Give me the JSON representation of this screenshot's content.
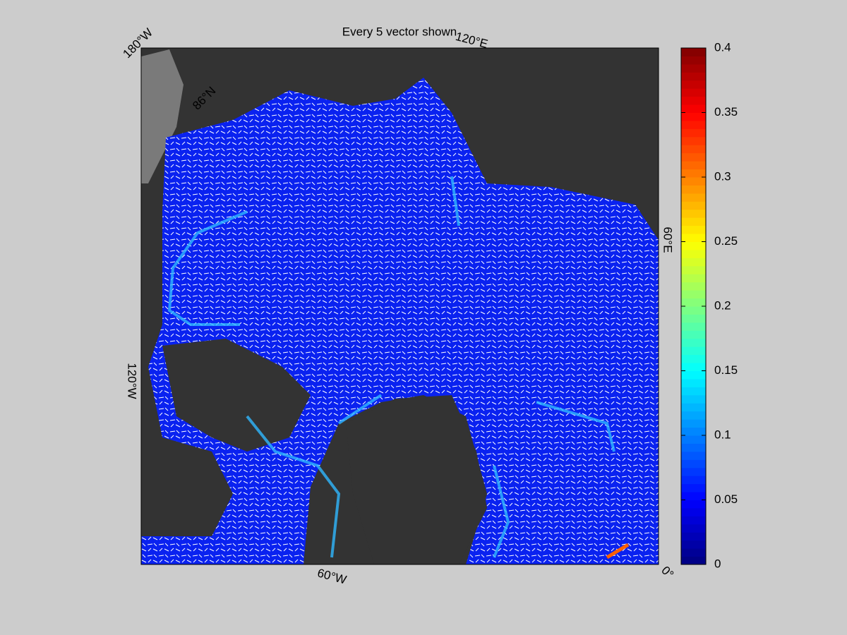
{
  "title": "Every 5 vector shown",
  "map_labels": {
    "lon_180w": "180°W",
    "lon_120e": "120°E",
    "lon_60e": "60°E",
    "lon_0": "0°",
    "lon_60w": "60°W",
    "lon_120w": "120°W",
    "lat_86n": "86°N"
  },
  "colorbar": {
    "lim": [
      0,
      0.4
    ],
    "ticks": [
      0,
      0.05,
      0.1,
      0.15,
      0.2,
      0.25,
      0.3,
      0.35,
      0.4
    ],
    "colormap": "jet"
  }
}
